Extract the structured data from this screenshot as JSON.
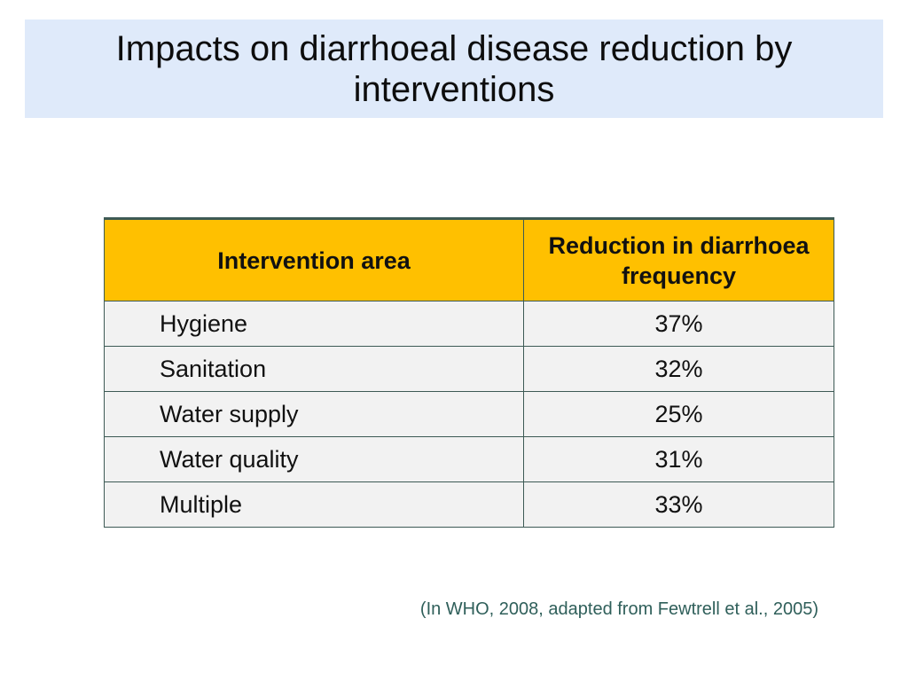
{
  "slide": {
    "title": "Impacts on diarrhoeal disease reduction by interventions",
    "source_note": "(In WHO, 2008, adapted from Fewtrell et al., 2005)"
  },
  "table": {
    "headers": [
      "Intervention area",
      "Reduction in diarrhoea frequency"
    ],
    "rows": [
      {
        "area": "Hygiene",
        "reduction": "37%"
      },
      {
        "area": "Sanitation",
        "reduction": "32%"
      },
      {
        "area": "Water supply",
        "reduction": "25%"
      },
      {
        "area": "Water quality",
        "reduction": "31%"
      },
      {
        "area": "Multiple",
        "reduction": "33%"
      }
    ]
  },
  "colors": {
    "title_background": "#dfeafa",
    "header_background": "#ffc000",
    "row_background": "#f2f2f2",
    "source_text": "#2f5f5a"
  }
}
